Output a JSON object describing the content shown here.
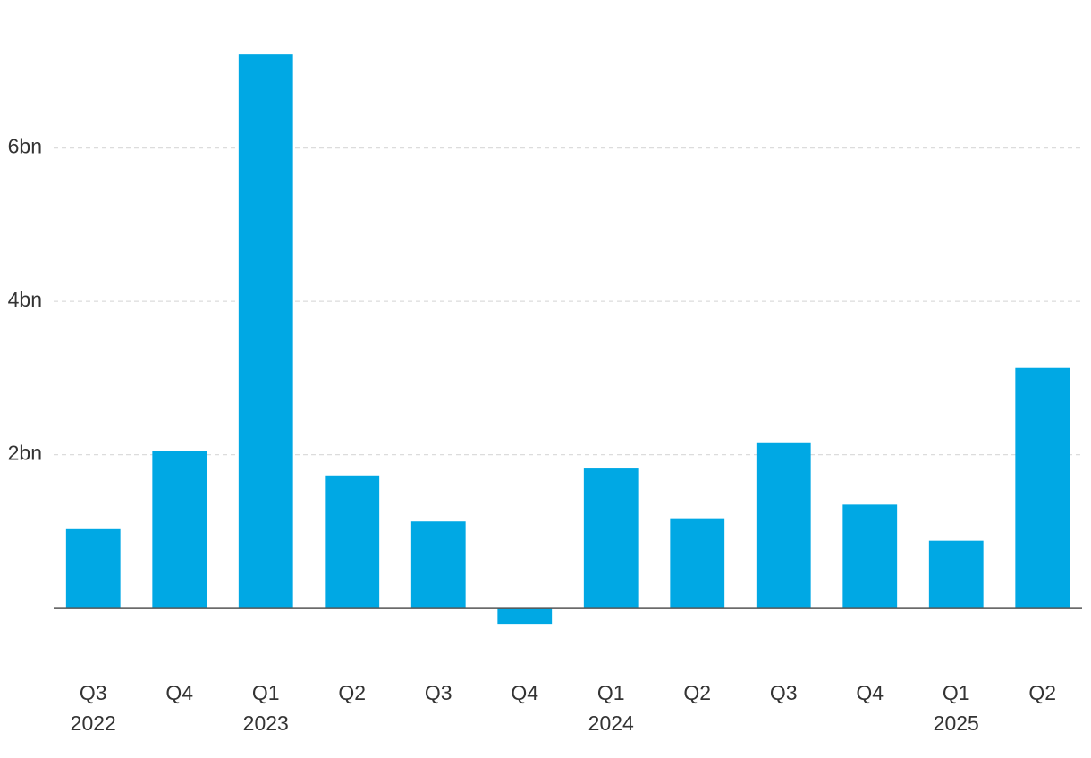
{
  "chart_data": {
    "type": "bar",
    "categories": [
      "Q3",
      "Q4",
      "Q1",
      "Q2",
      "Q3",
      "Q4",
      "Q1",
      "Q2",
      "Q3",
      "Q4",
      "Q1",
      "Q2"
    ],
    "category_years": [
      "2022",
      null,
      "2023",
      null,
      null,
      null,
      "2024",
      null,
      null,
      null,
      "2025",
      null
    ],
    "values": [
      1.03,
      2.05,
      7.23,
      1.73,
      1.13,
      -0.21,
      1.82,
      1.16,
      2.15,
      1.35,
      0.88,
      3.13
    ],
    "color": "#00a8e4",
    "ylim": [
      -0.5,
      7.5
    ],
    "yticks": [
      {
        "value": 2,
        "label": "2bn"
      },
      {
        "value": 4,
        "label": "4bn"
      },
      {
        "value": 6,
        "label": "6bn"
      }
    ],
    "grid": true
  }
}
